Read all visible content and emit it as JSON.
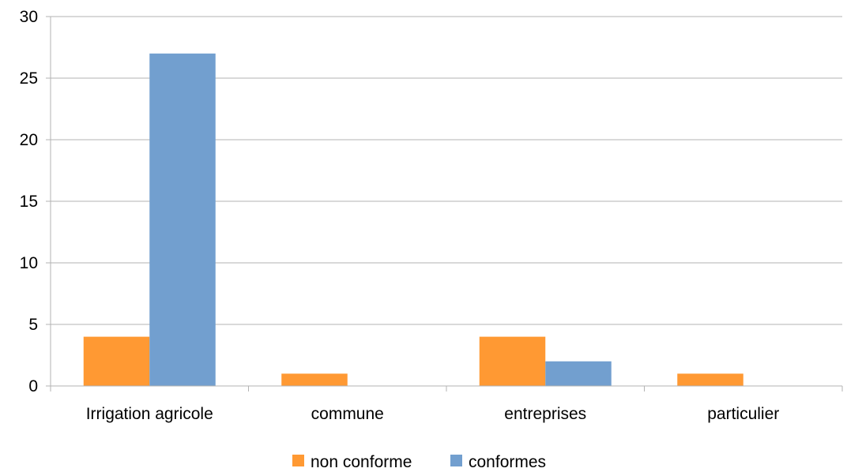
{
  "chart_data": {
    "type": "bar",
    "title": "",
    "xlabel": "",
    "ylabel": "",
    "categories": [
      "Irrigation agricole",
      "commune",
      "entreprises",
      "particulier"
    ],
    "series": [
      {
        "name": "non conforme",
        "values": [
          4,
          1,
          4,
          1
        ],
        "color": "#ff9933"
      },
      {
        "name": "conformes",
        "values": [
          27,
          0,
          2,
          0
        ],
        "color": "#729fcf"
      }
    ],
    "ylim": [
      0,
      30
    ],
    "yticks": [
      0,
      5,
      10,
      15,
      20,
      25,
      30
    ],
    "grid": true,
    "legend_position": "bottom"
  }
}
